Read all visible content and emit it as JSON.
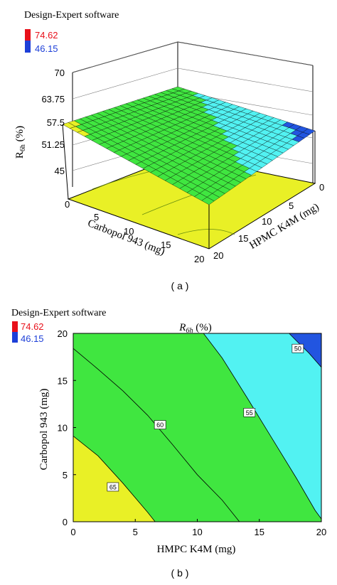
{
  "colors": {
    "high": "#e8101a",
    "low": "#1d3fd8",
    "band_yellow": "#e9f026",
    "band_green": "#40e640",
    "band_cyan": "#52f2f2",
    "band_blue": "#2255e0",
    "grid": "#000000"
  },
  "chart_data": [
    {
      "type": "surface",
      "software_label": "Design-Expert software",
      "legend": {
        "high": "74.62",
        "low": "46.15"
      },
      "panel_label": "( a )",
      "zlabel": {
        "main": "R",
        "sub": "6h",
        "unit": " (%)"
      },
      "xlabel": "Carbopol 943 (mg)",
      "ylabel": "HPMC K4M (mg)",
      "z_ticks": [
        "70",
        "63.75",
        "57.5",
        "51.25",
        "45"
      ],
      "x_ticks": [
        "0",
        "5",
        "10",
        "15",
        "20"
      ],
      "y_ticks": [
        "0",
        "5",
        "10",
        "15",
        "20"
      ],
      "xlim": [
        0,
        20
      ],
      "ylim": [
        0,
        20
      ],
      "zlim": [
        45,
        70
      ],
      "corners": [
        {
          "carbopol": 0,
          "hpmc": 0,
          "r6h": 66.5
        },
        {
          "carbopol": 20,
          "hpmc": 0,
          "r6h": 58.0
        },
        {
          "carbopol": 0,
          "hpmc": 20,
          "r6h": 54.5
        },
        {
          "carbopol": 20,
          "hpmc": 20,
          "r6h": 46.2
        }
      ]
    },
    {
      "type": "contour",
      "software_label": "Design-Expert software",
      "legend": {
        "high": "74.62",
        "low": "46.15"
      },
      "panel_label": "( b )",
      "title": {
        "main": "R",
        "sub": "6h",
        "unit": " (%)"
      },
      "xlabel": "HMPC K4M (mg)",
      "ylabel": "Carbopol 943 (mg)",
      "x_ticks": [
        "0",
        "5",
        "10",
        "15",
        "20"
      ],
      "y_ticks": [
        "0",
        "5",
        "10",
        "15",
        "20"
      ],
      "xlim": [
        0,
        20
      ],
      "ylim": [
        0,
        20
      ],
      "contour_labels": [
        {
          "level": "65",
          "x": 3.2,
          "y": 3.7
        },
        {
          "level": "60",
          "x": 7.0,
          "y": 10.3
        },
        {
          "level": "55",
          "x": 14.2,
          "y": 11.6
        },
        {
          "level": "50",
          "x": 18.1,
          "y": 18.4
        }
      ],
      "contour_lines": [
        {
          "level": 65,
          "points": [
            [
              0,
              9.1
            ],
            [
              2,
              7.0
            ],
            [
              4,
              4.1
            ],
            [
              6,
              1.0
            ],
            [
              6.6,
              0
            ]
          ]
        },
        {
          "level": 60,
          "points": [
            [
              0,
              18.4
            ],
            [
              2,
              16.2
            ],
            [
              4,
              13.9
            ],
            [
              6,
              11.3
            ],
            [
              8,
              8.2
            ],
            [
              10,
              5.0
            ],
            [
              12,
              2.3
            ],
            [
              13.4,
              0
            ]
          ]
        },
        {
          "level": 55,
          "points": [
            [
              10.5,
              20
            ],
            [
              12,
              17.4
            ],
            [
              14,
              13.2
            ],
            [
              16,
              8.9
            ],
            [
              18,
              4.6
            ],
            [
              19.5,
              1.2
            ],
            [
              20,
              0.3
            ]
          ]
        },
        {
          "level": 50,
          "points": [
            [
              17.4,
              20
            ],
            [
              18,
              19.2
            ],
            [
              19,
              17.9
            ],
            [
              20,
              16.4
            ]
          ]
        }
      ]
    }
  ]
}
